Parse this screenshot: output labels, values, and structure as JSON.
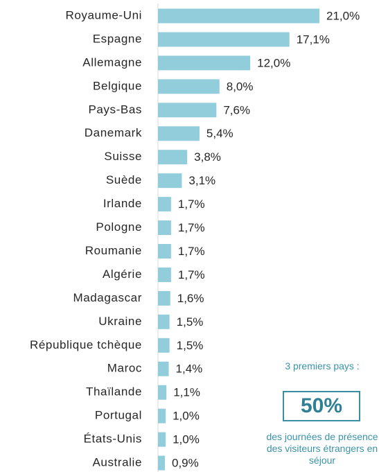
{
  "chart_data": {
    "type": "bar",
    "orientation": "horizontal",
    "color": "#92cddc",
    "categories": [
      "Royaume-Uni",
      "Espagne",
      "Allemagne",
      "Belgique",
      "Pays-Bas",
      "Danemark",
      "Suisse",
      "Suède",
      "Irlande",
      "Pologne",
      "Roumanie",
      "Algérie",
      "Madagascar",
      "Ukraine",
      "République tchèque",
      "Maroc",
      "Thaïlande",
      "Portugal",
      "États-Unis",
      "Australie"
    ],
    "values": [
      21.0,
      17.1,
      12.0,
      8.0,
      7.6,
      5.4,
      3.8,
      3.1,
      1.7,
      1.7,
      1.7,
      1.7,
      1.6,
      1.5,
      1.5,
      1.4,
      1.1,
      1.0,
      1.0,
      0.9
    ],
    "value_labels": [
      "21,0%",
      "17,1%",
      "12,0%",
      "8,0%",
      "7,6%",
      "5,4%",
      "3,8%",
      "3,1%",
      "1,7%",
      "1,7%",
      "1,7%",
      "1,7%",
      "1,6%",
      "1,5%",
      "1,5%",
      "1,4%",
      "1,1%",
      "1,0%",
      "1,0%",
      "0,9%"
    ],
    "annotations": [
      "3 premiers pays :",
      "50%",
      "des journées de présence des visiteurs étrangers en séjour"
    ]
  }
}
